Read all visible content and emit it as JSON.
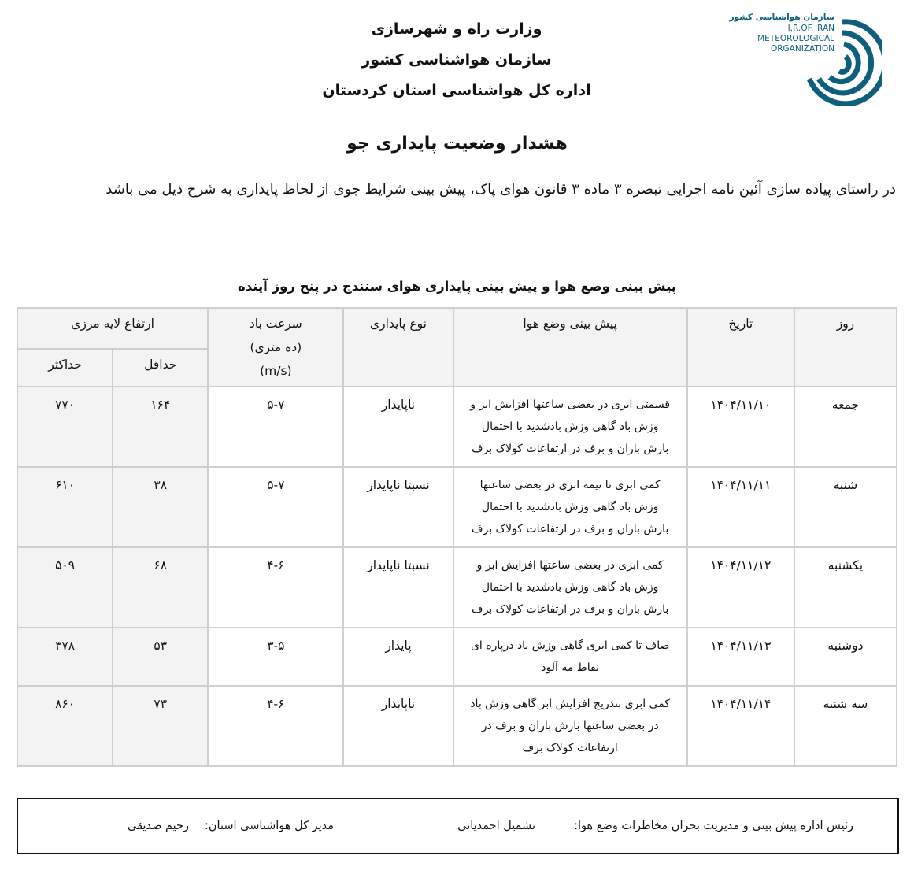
{
  "header": {
    "lines": [
      "وزارت راه و شهرسازی",
      "سازمان هواشناسی کشور",
      "اداره کل هواشناسی استان کردستان"
    ]
  },
  "logo": {
    "text_fa": "سازمان هواشناسی کشور",
    "text_en": [
      "I.R.OF IRAN",
      "METEOROLOGICAL",
      "ORGANIZATION"
    ],
    "color": "#0e5f7c"
  },
  "title": "هشدار وضعیت پایداری جو",
  "intro": "در راستای پیاده سازی آئین نامه اجرایی تبصره ۳ ماده ۳ قانون هوای پاک، پیش بینی شرایط جوی از لحاظ پایداری به شرح ذیل می باشد",
  "table": {
    "title": "پیش بینی وضع هوا و پیش بینی پایداری هوای سنندج در پنج روز آینده",
    "headers": {
      "day": "روز",
      "date": "تاریخ",
      "forecast": "پیش بینی وضع هوا",
      "stability": "نوع پایداری",
      "wind": "سرعت باد",
      "wind_sub": "(ده متری)",
      "wind_unit": "(m/s)",
      "boundary": "ارتفاع لایه مرزی",
      "min": "حداقل",
      "max": "حداکثر"
    },
    "rows": [
      {
        "day": "جمعه",
        "date": "۱۴۰۴/۱۱/۱۰",
        "forecast": [
          "قسمتی ابری در بعضی ساعتها افزایش ابر و",
          "وزش باد گاهی وزش بادشدید با احتمال",
          "بارش باران و برف در ارتفاعات کولاک برف"
        ],
        "stability": "ناپایدار",
        "wind": "۵-۷",
        "min": "۱۶۴",
        "max": "۷۷۰"
      },
      {
        "day": "شنبه",
        "date": "۱۴۰۴/۱۱/۱۱",
        "forecast": [
          "کمی ابری تا نیمه ابری در بعضی ساعتها",
          "وزش باد گاهی وزش بادشدید با احتمال",
          "بارش باران و برف در ارتفاعات کولاک برف"
        ],
        "stability": "نسبتا ناپایدار",
        "wind": "۵-۷",
        "min": "۳۸",
        "max": "۶۱۰"
      },
      {
        "day": "یکشنبه",
        "date": "۱۴۰۴/۱۱/۱۲",
        "forecast": [
          "کمی ابری در بعضی ساعتها افزایش ابر و",
          "وزش باد گاهی وزش بادشدید با احتمال",
          "بارش باران و برف در ارتفاعات کولاک برف"
        ],
        "stability": "نسبتا ناپایدار",
        "wind": "۴-۶",
        "min": "۶۸",
        "max": "۵۰۹"
      },
      {
        "day": "دوشنبه",
        "date": "۱۴۰۴/۱۱/۱۳",
        "forecast": [
          "صاف تا کمی ابری گاهی وزش باد درپاره ای",
          "نقاط مه آلود"
        ],
        "stability": "پایدار",
        "wind": "۳-۵",
        "min": "۵۳",
        "max": "۳۷۸"
      },
      {
        "day": "سه شنبه",
        "date": "۱۴۰۴/۱۱/۱۴",
        "forecast": [
          "کمی ابری بتدریج افزایش ابر گاهی وزش باد",
          "در بعضی ساعتها بارش باران و برف در",
          "ارتفاعات کولاک برف"
        ],
        "stability": "ناپایدار",
        "wind": "۴-۶",
        "min": "۷۳",
        "max": "۸۶۰"
      }
    ]
  },
  "footer": {
    "left_role": "رئیس اداره پیش بینی و مدیریت بحران مخاطرات وضع هوا:",
    "left_name": "نشمیل احمدیانی",
    "right_role": "مدیر کل هواشناسی استان:",
    "right_name": "رحیم صدیقی"
  }
}
